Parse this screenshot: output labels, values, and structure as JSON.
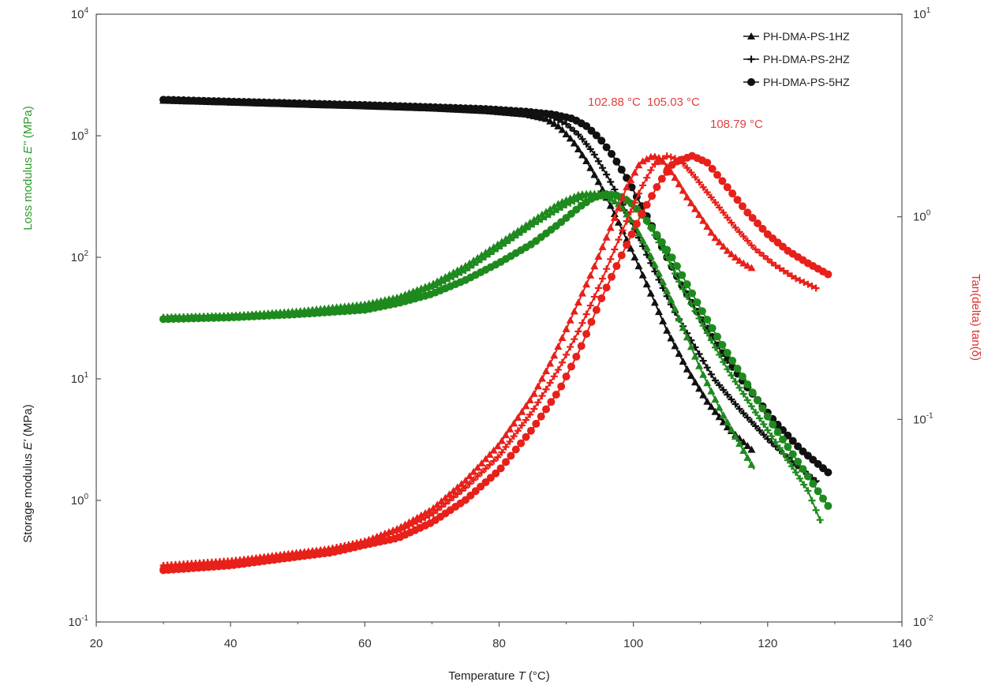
{
  "chart_data": {
    "type": "scatter",
    "xlabel": "Temperature T (°C)",
    "xlabel_parts": {
      "pre": "Temperature ",
      "sym": "T",
      "post": " (°C)"
    },
    "ylabel_left_top": "Loss modulus E'' (MPa)",
    "ylabel_left_top_parts": {
      "pre": "Loss modulus ",
      "sym": "E''",
      "post": " (MPa)"
    },
    "ylabel_left_bottom": "Storage modulus E' (MPa)",
    "ylabel_left_bottom_parts": {
      "pre": "Storage modulus ",
      "sym": "E'",
      "post": " (MPa)"
    },
    "ylabel_right": "Tan(delta) tan(δ)",
    "xlim": [
      20,
      140
    ],
    "x_ticks": [
      20,
      40,
      60,
      80,
      100,
      120,
      140
    ],
    "ylim_left": [
      0.1,
      10000
    ],
    "ylim_left_log": true,
    "y_left_ticks": [
      {
        "base": "10",
        "exp": "-1",
        "value": 0.1
      },
      {
        "base": "10",
        "exp": "0",
        "value": 1
      },
      {
        "base": "10",
        "exp": "1",
        "value": 10
      },
      {
        "base": "10",
        "exp": "2",
        "value": 100
      },
      {
        "base": "10",
        "exp": "3",
        "value": 1000
      },
      {
        "base": "10",
        "exp": "4",
        "value": 10000
      }
    ],
    "ylim_right": [
      0.01,
      10
    ],
    "ylim_right_log": true,
    "y_right_ticks": [
      {
        "base": "10",
        "exp": "-2",
        "value": 0.01
      },
      {
        "base": "10",
        "exp": "-1",
        "value": 0.1
      },
      {
        "base": "10",
        "exp": "0",
        "value": 1
      },
      {
        "base": "10",
        "exp": "1",
        "value": 10
      }
    ],
    "grid": false,
    "legend_position": "top-right",
    "legend": [
      {
        "name": "PH-DMA-PS-1HZ",
        "marker": "triangle"
      },
      {
        "name": "PH-DMA-PS-2HZ",
        "marker": "cross"
      },
      {
        "name": "PH-DMA-PS-5HZ",
        "marker": "circle"
      }
    ],
    "colors": {
      "storage": "#111111",
      "loss": "#1e8a1e",
      "tan": "#e8201a",
      "loss_axis_label": "#2a9a2a",
      "tan_axis_label": "#e03030",
      "peak_label": "#e04040"
    },
    "peak_annotations": [
      {
        "text": "102.88 °C",
        "x": 102.88
      },
      {
        "text": "105.03 °C",
        "x": 105.03
      },
      {
        "text": "108.79 °C",
        "x": 108.79
      }
    ],
    "series": [
      {
        "quantity": "storage",
        "axis": "left",
        "marker": "triangle",
        "x": [
          30,
          40,
          50,
          60,
          70,
          78,
          84,
          87,
          89,
          91,
          93,
          95,
          97,
          99,
          101,
          103,
          105,
          108,
          111,
          114,
          118
        ],
        "y": [
          1950,
          1880,
          1810,
          1750,
          1680,
          1600,
          1500,
          1380,
          1180,
          900,
          620,
          400,
          240,
          140,
          80,
          45,
          25,
          12,
          6.5,
          4,
          2.5
        ]
      },
      {
        "quantity": "storage",
        "axis": "left",
        "marker": "cross",
        "x": [
          30,
          40,
          50,
          60,
          70,
          78,
          84,
          88,
          90,
          92,
          94,
          96,
          98,
          100,
          102,
          104,
          106,
          109,
          112,
          116,
          120,
          124,
          127.5
        ],
        "y": [
          1960,
          1890,
          1830,
          1770,
          1700,
          1630,
          1540,
          1420,
          1250,
          1000,
          730,
          480,
          300,
          180,
          105,
          62,
          37,
          19,
          10,
          5.5,
          3.2,
          2.0,
          1.4
        ]
      },
      {
        "quantity": "storage",
        "axis": "left",
        "marker": "circle",
        "x": [
          30,
          40,
          50,
          60,
          70,
          78,
          84,
          88,
          91,
          93,
          95,
          97,
          99,
          101,
          103,
          105,
          107,
          110,
          113,
          117,
          121,
          125,
          129
        ],
        "y": [
          1980,
          1910,
          1850,
          1790,
          1720,
          1660,
          1580,
          1500,
          1380,
          1200,
          950,
          680,
          450,
          280,
          170,
          100,
          62,
          32,
          17,
          8.5,
          4.5,
          2.6,
          1.7
        ]
      },
      {
        "quantity": "loss",
        "axis": "left",
        "marker": "triangle",
        "x": [
          30,
          40,
          50,
          60,
          65,
          70,
          75,
          80,
          85,
          89,
          92,
          94,
          96,
          98,
          100,
          102,
          104,
          106,
          108,
          110,
          113,
          116,
          118
        ],
        "y": [
          32,
          33,
          36,
          41,
          47,
          60,
          85,
          130,
          200,
          280,
          330,
          335,
          320,
          270,
          190,
          120,
          70,
          40,
          22,
          12,
          5.5,
          2.8,
          1.8
        ]
      },
      {
        "quantity": "loss",
        "axis": "left",
        "marker": "cross",
        "x": [
          30,
          40,
          50,
          60,
          65,
          70,
          75,
          80,
          85,
          90,
          93,
          95,
          97,
          99,
          101,
          103,
          105,
          107,
          110,
          114,
          118,
          122,
          126,
          128
        ],
        "y": [
          32,
          33,
          35,
          39,
          45,
          56,
          78,
          120,
          185,
          270,
          320,
          335,
          330,
          300,
          240,
          160,
          100,
          60,
          30,
          12,
          5.5,
          2.6,
          1.2,
          0.65
        ]
      },
      {
        "quantity": "loss",
        "axis": "left",
        "marker": "circle",
        "x": [
          30,
          40,
          50,
          60,
          65,
          70,
          75,
          80,
          85,
          89,
          92,
          94,
          96,
          98,
          100,
          102,
          104,
          106,
          108,
          110,
          113,
          117,
          121,
          125,
          129
        ],
        "y": [
          31,
          32,
          34,
          37,
          42,
          50,
          65,
          90,
          130,
          190,
          260,
          310,
          330,
          320,
          270,
          200,
          140,
          95,
          60,
          38,
          20,
          9,
          4,
          1.9,
          0.9
        ]
      },
      {
        "quantity": "tan",
        "axis": "right",
        "marker": "triangle",
        "x": [
          30,
          40,
          50,
          55,
          60,
          65,
          70,
          75,
          80,
          85,
          88,
          91,
          94,
          97,
          99,
          101,
          102.88,
          104,
          106,
          108,
          110,
          112,
          114,
          116,
          118
        ],
        "y": [
          0.019,
          0.02,
          0.022,
          0.023,
          0.025,
          0.029,
          0.036,
          0.05,
          0.075,
          0.13,
          0.2,
          0.33,
          0.55,
          0.95,
          1.4,
          1.85,
          2.0,
          1.95,
          1.6,
          1.25,
          1.0,
          0.8,
          0.68,
          0.6,
          0.55
        ]
      },
      {
        "quantity": "tan",
        "axis": "right",
        "marker": "cross",
        "x": [
          30,
          40,
          50,
          55,
          60,
          65,
          70,
          75,
          80,
          85,
          89,
          92,
          95,
          98,
          101,
          103,
          105.03,
          107,
          109,
          112,
          115,
          118,
          121,
          124,
          127.5
        ],
        "y": [
          0.019,
          0.02,
          0.021,
          0.023,
          0.025,
          0.028,
          0.034,
          0.046,
          0.066,
          0.11,
          0.18,
          0.28,
          0.46,
          0.8,
          1.35,
          1.8,
          2.0,
          1.9,
          1.6,
          1.2,
          0.9,
          0.7,
          0.58,
          0.5,
          0.44
        ]
      },
      {
        "quantity": "tan",
        "axis": "right",
        "marker": "circle",
        "x": [
          30,
          40,
          50,
          55,
          60,
          65,
          70,
          75,
          80,
          85,
          89,
          92,
          95,
          98,
          101,
          104,
          106,
          108.79,
          111,
          114,
          117,
          120,
          123,
          126,
          129
        ],
        "y": [
          0.018,
          0.019,
          0.021,
          0.022,
          0.024,
          0.026,
          0.031,
          0.04,
          0.056,
          0.09,
          0.14,
          0.22,
          0.38,
          0.62,
          1.0,
          1.5,
          1.85,
          2.0,
          1.85,
          1.4,
          1.05,
          0.82,
          0.68,
          0.59,
          0.52
        ]
      }
    ]
  }
}
